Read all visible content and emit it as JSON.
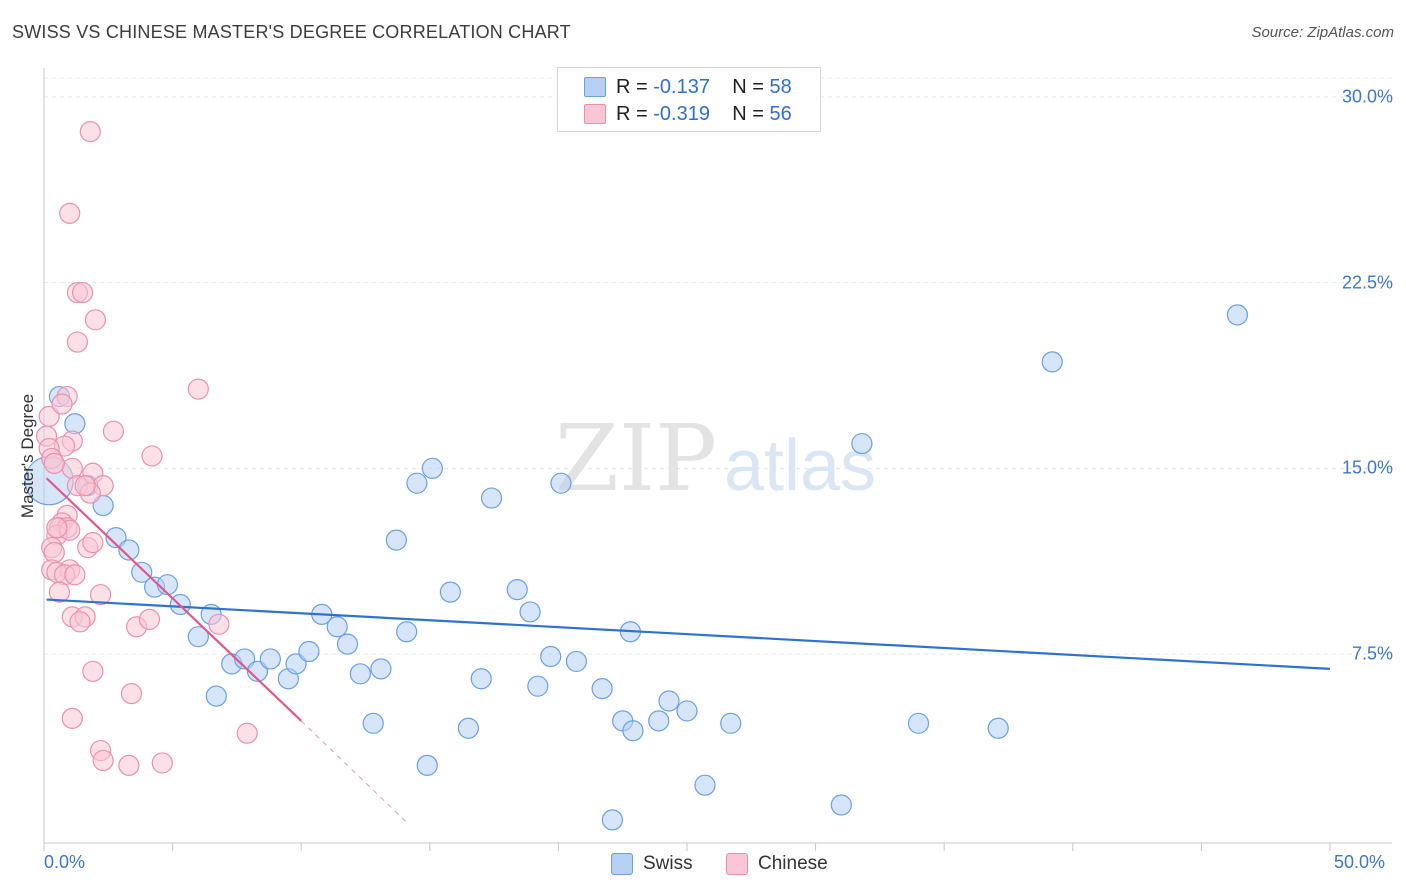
{
  "chart_data": {
    "type": "scatter",
    "title": "SWISS VS CHINESE MASTER'S DEGREE CORRELATION CHART",
    "source": "Source: ZipAtlas.com",
    "xlabel": "",
    "ylabel": "Master's Degree",
    "xlim": [
      0,
      50
    ],
    "ylim": [
      0,
      31
    ],
    "x_tick_labels": [
      "0.0%",
      "50.0%"
    ],
    "y_ticks": [
      7.5,
      15.0,
      22.5,
      30.0
    ],
    "y_tick_labels": [
      "7.5%",
      "15.0%",
      "22.5%",
      "30.0%"
    ],
    "grid": true,
    "watermark": "ZIPatlas",
    "stats": [
      {
        "r_label": "R = ",
        "r_value": "-0.137",
        "n_label": "N = ",
        "n_value": "58"
      },
      {
        "r_label": "R = ",
        "r_value": "-0.319",
        "n_label": "N = ",
        "n_value": "56"
      }
    ],
    "series": [
      {
        "name": "Swiss",
        "color": "#6aa0e6",
        "fill": "#b5d0f2",
        "line_color": "#2f72cf",
        "trend": {
          "x0": 0.1,
          "y0": 9.7,
          "x1": 50.0,
          "y1": 6.9
        },
        "points": [
          [
            0.6,
            17.9
          ],
          [
            1.2,
            16.8
          ],
          [
            1.7,
            14.3
          ],
          [
            2.3,
            13.5
          ],
          [
            2.8,
            12.2
          ],
          [
            3.3,
            11.7
          ],
          [
            3.8,
            10.8
          ],
          [
            4.3,
            10.2
          ],
          [
            4.8,
            10.3
          ],
          [
            5.3,
            9.5
          ],
          [
            6.0,
            8.2
          ],
          [
            6.5,
            9.1
          ],
          [
            6.7,
            5.8
          ],
          [
            7.3,
            7.1
          ],
          [
            7.8,
            7.3
          ],
          [
            8.3,
            6.8
          ],
          [
            8.8,
            7.3
          ],
          [
            9.5,
            6.5
          ],
          [
            9.8,
            7.1
          ],
          [
            10.3,
            7.6
          ],
          [
            10.8,
            9.1
          ],
          [
            11.4,
            8.6
          ],
          [
            11.8,
            7.9
          ],
          [
            12.3,
            6.7
          ],
          [
            12.8,
            4.7
          ],
          [
            13.1,
            6.9
          ],
          [
            13.7,
            12.1
          ],
          [
            14.1,
            8.4
          ],
          [
            14.5,
            14.4
          ],
          [
            14.9,
            3.0
          ],
          [
            15.1,
            15.0
          ],
          [
            15.8,
            10.0
          ],
          [
            16.5,
            4.5
          ],
          [
            17.0,
            6.5
          ],
          [
            17.4,
            13.8
          ],
          [
            18.4,
            10.1
          ],
          [
            18.9,
            9.2
          ],
          [
            19.2,
            6.2
          ],
          [
            19.7,
            7.4
          ],
          [
            20.1,
            14.4
          ],
          [
            20.7,
            7.2
          ],
          [
            21.7,
            6.1
          ],
          [
            22.1,
            0.8
          ],
          [
            22.5,
            4.8
          ],
          [
            22.9,
            4.4
          ],
          [
            22.8,
            8.4
          ],
          [
            23.9,
            4.8
          ],
          [
            24.3,
            5.6
          ],
          [
            25.0,
            5.2
          ],
          [
            25.7,
            2.2
          ],
          [
            26.7,
            4.7
          ],
          [
            31.0,
            1.4
          ],
          [
            31.8,
            16.0
          ],
          [
            34.0,
            4.7
          ],
          [
            37.1,
            4.5
          ],
          [
            39.2,
            19.3
          ],
          [
            46.4,
            21.2
          ],
          [
            0.2,
            14.5
          ]
        ],
        "sizes": [
          10,
          10,
          10,
          10,
          10,
          10,
          10,
          10,
          10,
          10,
          10,
          10,
          10,
          10,
          10,
          10,
          10,
          10,
          10,
          10,
          10,
          10,
          10,
          10,
          10,
          10,
          10,
          10,
          10,
          10,
          10,
          10,
          10,
          10,
          10,
          10,
          10,
          10,
          10,
          10,
          10,
          10,
          10,
          10,
          10,
          10,
          10,
          10,
          10,
          10,
          10,
          10,
          10,
          10,
          10,
          10,
          10,
          24
        ]
      },
      {
        "name": "Chinese",
        "color": "#ee8fae",
        "fill": "#f8c6d5",
        "line_color": "#e2578a",
        "trend": {
          "x0": 0.1,
          "y0": 14.6,
          "x1": 10.0,
          "y1": 4.8
        },
        "trend_dashed": {
          "x0": 10.0,
          "y0": 4.8,
          "x1": 14.2,
          "y1": 0.6
        },
        "points": [
          [
            1.8,
            28.6
          ],
          [
            1.0,
            25.3
          ],
          [
            1.3,
            22.1
          ],
          [
            1.5,
            22.1
          ],
          [
            2.0,
            21.0
          ],
          [
            1.3,
            20.1
          ],
          [
            6.0,
            18.2
          ],
          [
            0.9,
            17.9
          ],
          [
            0.2,
            17.1
          ],
          [
            0.7,
            17.6
          ],
          [
            2.7,
            16.5
          ],
          [
            0.1,
            16.3
          ],
          [
            1.1,
            16.1
          ],
          [
            0.8,
            15.9
          ],
          [
            0.2,
            15.8
          ],
          [
            4.2,
            15.5
          ],
          [
            0.3,
            15.4
          ],
          [
            1.1,
            15.0
          ],
          [
            1.9,
            14.8
          ],
          [
            1.3,
            14.3
          ],
          [
            2.3,
            14.3
          ],
          [
            1.8,
            14.0
          ],
          [
            1.6,
            14.3
          ],
          [
            0.9,
            13.1
          ],
          [
            0.7,
            12.8
          ],
          [
            0.6,
            12.6
          ],
          [
            0.9,
            12.6
          ],
          [
            0.5,
            12.3
          ],
          [
            1.0,
            12.5
          ],
          [
            1.7,
            11.8
          ],
          [
            1.9,
            12.0
          ],
          [
            0.3,
            11.8
          ],
          [
            0.4,
            11.6
          ],
          [
            1.0,
            10.9
          ],
          [
            0.3,
            10.9
          ],
          [
            0.5,
            10.8
          ],
          [
            0.8,
            10.7
          ],
          [
            0.6,
            10.0
          ],
          [
            2.2,
            9.9
          ],
          [
            1.1,
            9.0
          ],
          [
            1.6,
            9.0
          ],
          [
            1.4,
            8.8
          ],
          [
            3.6,
            8.6
          ],
          [
            4.1,
            8.9
          ],
          [
            6.8,
            8.7
          ],
          [
            1.9,
            6.8
          ],
          [
            3.4,
            5.9
          ],
          [
            1.1,
            4.9
          ],
          [
            7.9,
            4.3
          ],
          [
            2.2,
            3.6
          ],
          [
            2.3,
            3.2
          ],
          [
            3.3,
            3.0
          ],
          [
            4.6,
            3.1
          ],
          [
            0.4,
            15.2
          ],
          [
            0.5,
            12.6
          ],
          [
            1.2,
            10.7
          ]
        ],
        "sizes": [
          10,
          10,
          10,
          10,
          10,
          10,
          10,
          10,
          10,
          10,
          10,
          10,
          10,
          10,
          10,
          10,
          10,
          10,
          10,
          10,
          10,
          10,
          10,
          10,
          10,
          10,
          10,
          10,
          10,
          10,
          10,
          10,
          10,
          10,
          10,
          10,
          10,
          10,
          10,
          10,
          10,
          10,
          10,
          10,
          10,
          10,
          10,
          10,
          10,
          10,
          10,
          10,
          10,
          10,
          10,
          10
        ]
      }
    ]
  }
}
